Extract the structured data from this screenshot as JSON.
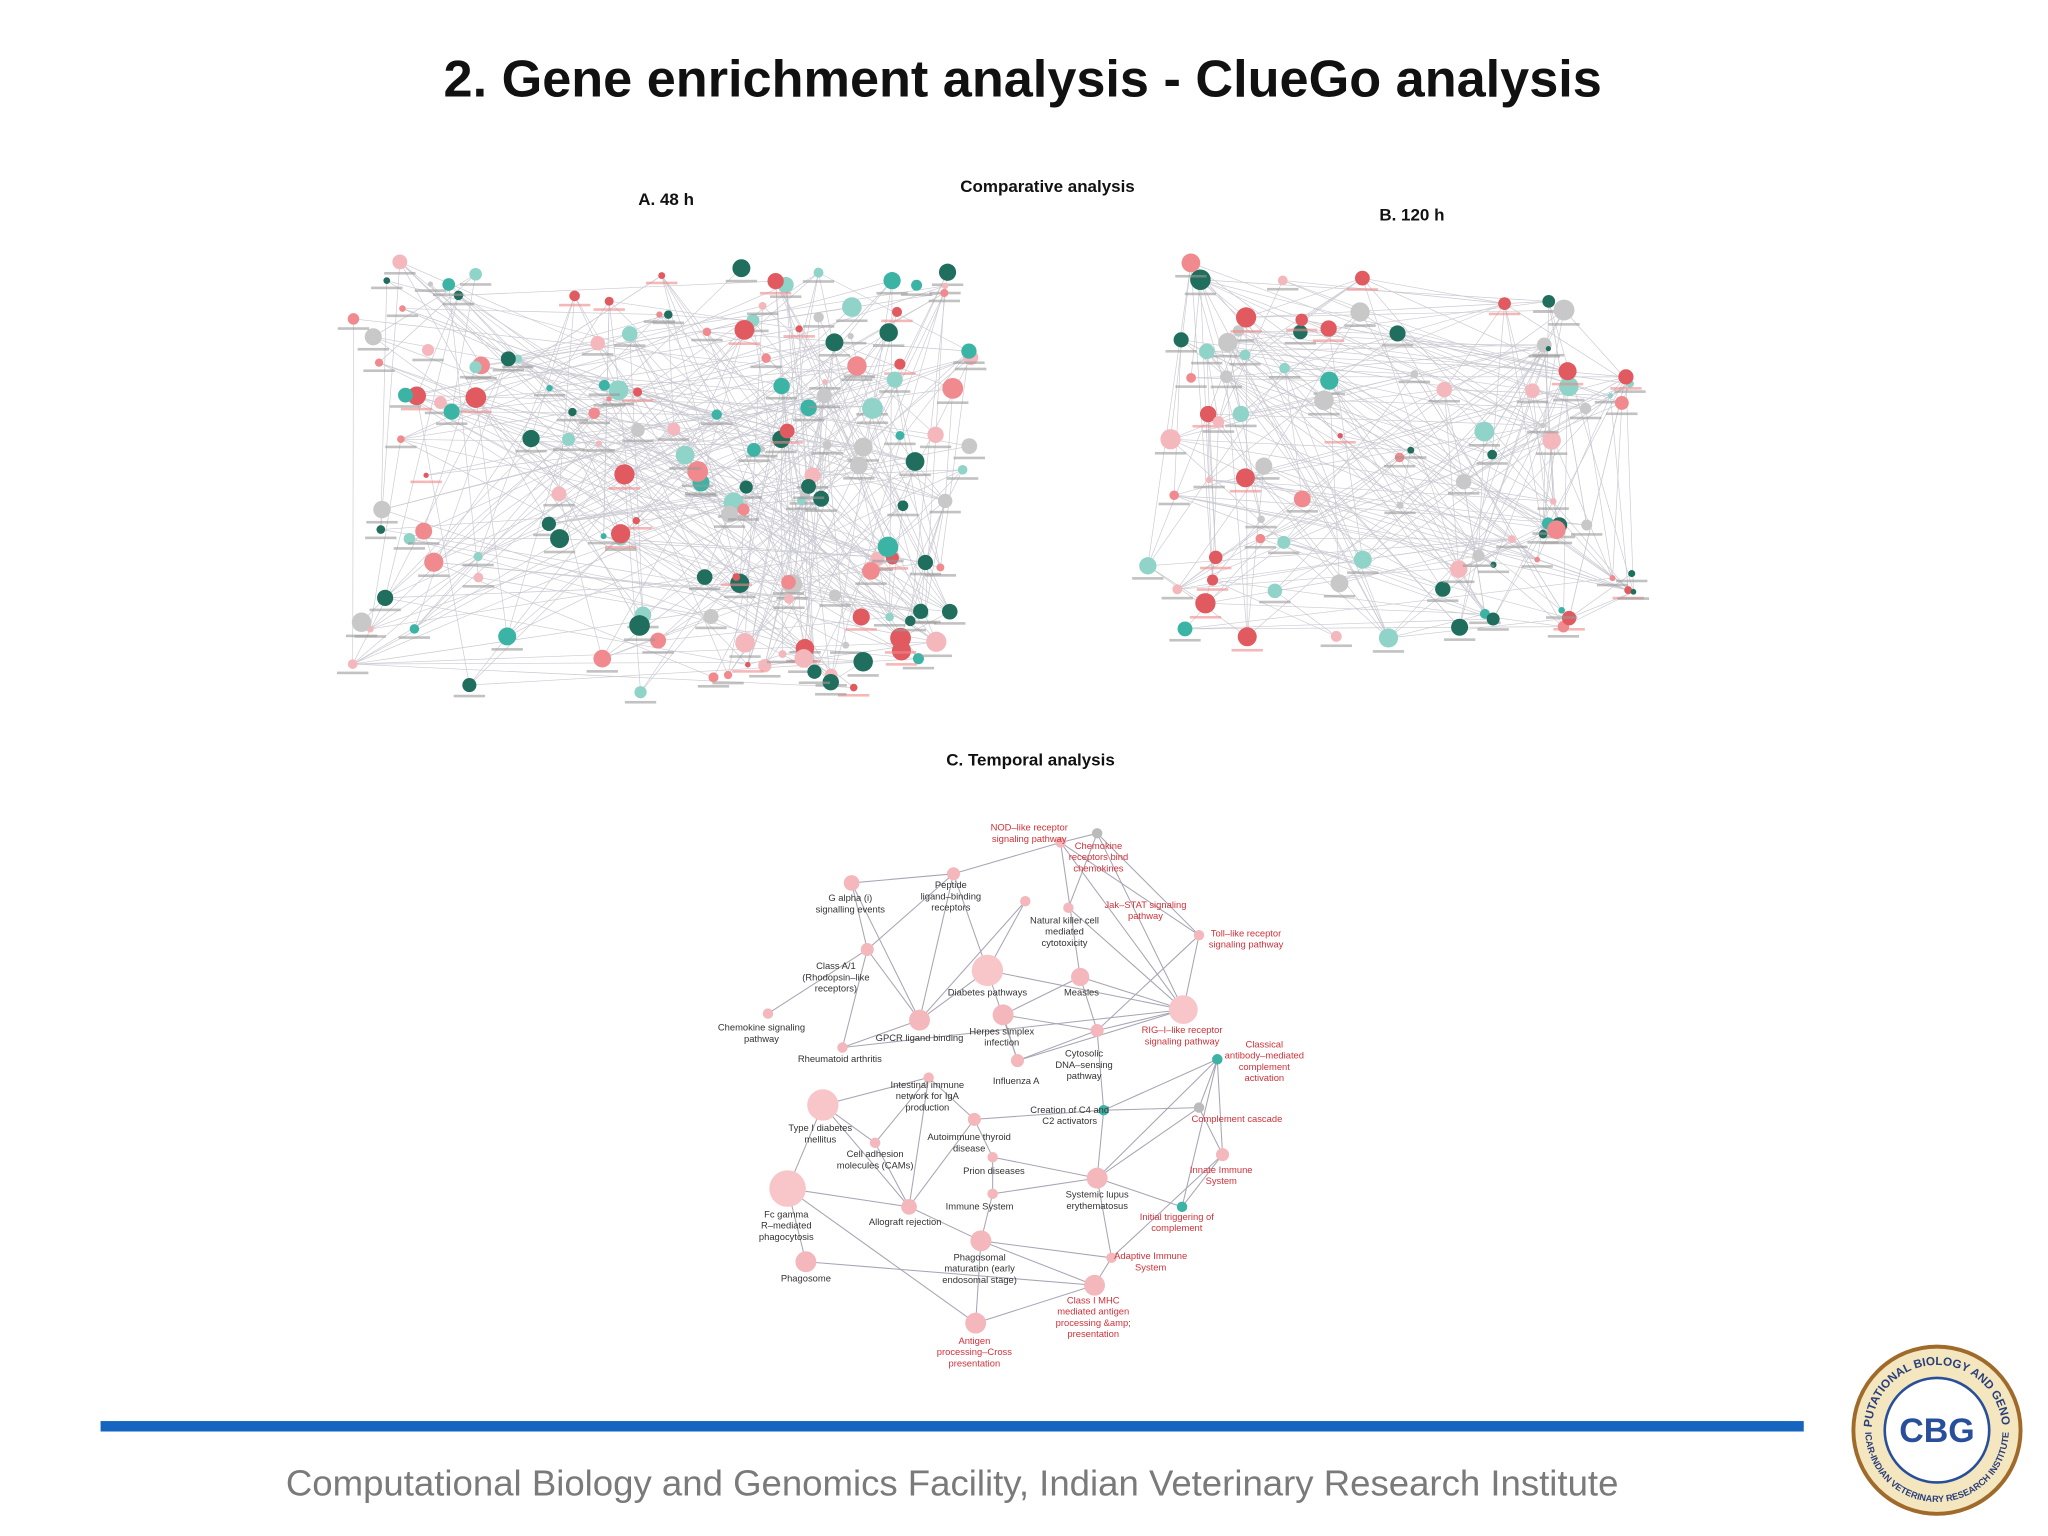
{
  "header": {
    "title": "2. Gene enrichment analysis - ClueGo analysis"
  },
  "panels": {
    "comparative": "Comparative analysis",
    "a": "A.  48 h",
    "b": "B.  120 h",
    "c": "C. Temporal analysis"
  },
  "network_c": {
    "nodes": [
      {
        "label_lines": [
          "NOD–like receptor",
          "signaling pathway"
        ],
        "highlight": true
      },
      {
        "label_lines": [
          "Chemokine",
          "receptors bind",
          "chemokines"
        ],
        "highlight": true
      },
      {
        "label_lines": [
          "G alpha (i)",
          "signalling events"
        ],
        "highlight": false
      },
      {
        "label_lines": [
          "Peptide",
          "ligand–binding",
          "receptors"
        ],
        "highlight": false
      },
      {
        "label_lines": [
          "Jak–STAT signaling",
          "pathway"
        ],
        "highlight": true
      },
      {
        "label_lines": [
          "Natural killer cell",
          "mediated",
          "cytotoxicity"
        ],
        "highlight": false
      },
      {
        "label_lines": [
          "Toll–like receptor",
          "signaling pathway"
        ],
        "highlight": true
      },
      {
        "label_lines": [
          "Class A/1",
          "(Rhodopsin–like",
          "receptors)"
        ],
        "highlight": false
      },
      {
        "label_lines": [
          "Diabetes pathways"
        ],
        "highlight": false
      },
      {
        "label_lines": [
          "Measles"
        ],
        "highlight": false
      },
      {
        "label_lines": [
          "Chemokine signaling",
          "pathway"
        ],
        "highlight": false
      },
      {
        "label_lines": [
          "GPCR ligand binding"
        ],
        "highlight": false
      },
      {
        "label_lines": [
          "Herpes simplex",
          "infection"
        ],
        "highlight": false
      },
      {
        "label_lines": [
          "RIG–I–like receptor",
          "signaling pathway"
        ],
        "highlight": true
      },
      {
        "label_lines": [
          "Rheumatoid arthritis"
        ],
        "highlight": false
      },
      {
        "label_lines": [
          "Cytosolic",
          "DNA–sensing",
          "pathway"
        ],
        "highlight": false
      },
      {
        "label_lines": [
          "Classical",
          "antibody–mediated",
          "complement",
          "activation"
        ],
        "highlight": true
      },
      {
        "label_lines": [
          "Intestinal immune",
          "network for IgA",
          "production"
        ],
        "highlight": false
      },
      {
        "label_lines": [
          "Influenza A"
        ],
        "highlight": false
      },
      {
        "label_lines": [
          "Creation of C4 and",
          "C2 activators"
        ],
        "highlight": false
      },
      {
        "label_lines": [
          "Complement cascade"
        ],
        "highlight": true
      },
      {
        "label_lines": [
          "Type I diabetes",
          "mellitus"
        ],
        "highlight": false
      },
      {
        "label_lines": [
          "Autoimmune thyroid",
          "disease"
        ],
        "highlight": false
      },
      {
        "label_lines": [
          "Cell adhesion",
          "molecules (CAMs)"
        ],
        "highlight": false
      },
      {
        "label_lines": [
          "Prion diseases"
        ],
        "highlight": false
      },
      {
        "label_lines": [
          "Innate Immune",
          "System"
        ],
        "highlight": true
      },
      {
        "label_lines": [
          "Systemic lupus",
          "erythematosus"
        ],
        "highlight": false
      },
      {
        "label_lines": [
          "Fc gamma",
          "R–mediated",
          "phagocytosis"
        ],
        "highlight": false
      },
      {
        "label_lines": [
          "Allograft rejection"
        ],
        "highlight": false
      },
      {
        "label_lines": [
          "Immune System"
        ],
        "highlight": false
      },
      {
        "label_lines": [
          "Initial triggering of",
          "complement"
        ],
        "highlight": true
      },
      {
        "label_lines": [
          "Phagosomal",
          "maturation (early",
          "endosomal stage)"
        ],
        "highlight": false
      },
      {
        "label_lines": [
          "Adaptive Immune",
          "System"
        ],
        "highlight": true
      },
      {
        "label_lines": [
          "Phagosome"
        ],
        "highlight": false
      },
      {
        "label_lines": [
          "Class I MHC",
          "mediated antigen",
          "processing &amp;",
          "presentation"
        ],
        "highlight": true
      },
      {
        "label_lines": [
          "Antigen",
          "processing–Cross",
          "presentation"
        ],
        "highlight": true
      }
    ]
  },
  "footer": {
    "text": "Computational Biology and Genomics Facility, Indian Veterinary Research Institute"
  },
  "logo": {
    "ring_top": "COMPUTATIONAL BIOLOGY AND GENOMICS",
    "ring_bottom": "ICAR-INDIAN VETERINARY RESEARCH INSTITUTE",
    "monogram": "CBG"
  }
}
